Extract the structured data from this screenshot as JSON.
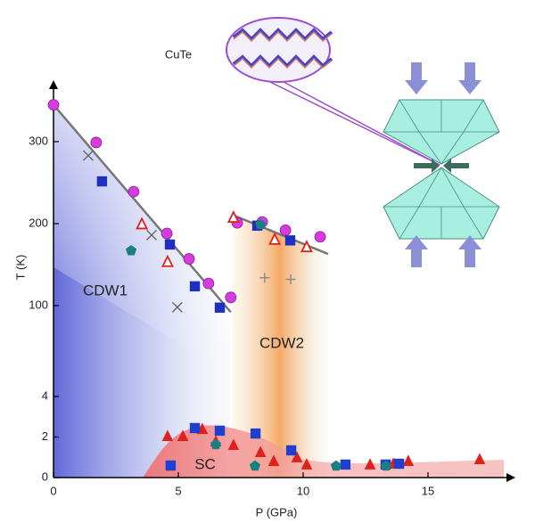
{
  "chart_data": [
    {
      "type": "scatter",
      "title": "CuTe",
      "ylabel": "T (K)",
      "xlim": [
        0,
        18.5
      ],
      "ylim": [
        90,
        375
      ],
      "yticks": [
        100,
        200,
        300
      ],
      "annotations": [
        "CDW1",
        "CDW2"
      ],
      "fits": [
        {
          "color": "#777777",
          "x": [
            0,
            7.1
          ],
          "values": [
            345,
            92
          ]
        },
        {
          "color": "#777777",
          "x": [
            7.14,
            11.0
          ],
          "values": [
            211,
            163
          ]
        }
      ],
      "series": [
        {
          "marker": "circle",
          "filled": true,
          "color": "#d63be0",
          "x": [
            0,
            1.71,
            3.21,
            4.54,
            5.43,
            6.21,
            7.1,
            7.36,
            8.36,
            9.29,
            10.68
          ],
          "values": [
            345,
            299,
            239,
            188,
            157,
            127,
            110,
            201,
            202,
            192,
            184
          ]
        },
        {
          "marker": "square",
          "filled": true,
          "color": "#1f2fbf",
          "x": [
            1.96,
            4.68,
            5.68,
            6.68,
            8.18,
            9.5
          ],
          "values": [
            251,
            174,
            123,
            97,
            197,
            179
          ]
        },
        {
          "marker": "triangle",
          "filled": false,
          "color": "#e0201c",
          "x": [
            3.54,
            4.57,
            7.21,
            8.86,
            10.14
          ],
          "values": [
            199,
            153,
            207,
            180,
            171
          ]
        },
        {
          "marker": "pentagon",
          "filled": true,
          "color": "#1a7f80",
          "x": [
            3.11,
            8.29
          ],
          "values": [
            167,
            199
          ]
        },
        {
          "marker": "cross",
          "filled": false,
          "color": "#666666",
          "x": [
            1.39,
            3.93,
            4.96
          ],
          "values": [
            283,
            186,
            98
          ]
        },
        {
          "marker": "plus",
          "filled": false,
          "color": "#888888",
          "x": [
            8.46,
            9.5
          ],
          "values": [
            134,
            132
          ]
        }
      ]
    },
    {
      "type": "scatter",
      "xlabel": "P (GPa)",
      "xlim": [
        0,
        18.5
      ],
      "ylim": [
        0,
        4.2
      ],
      "xticks": [
        0,
        5,
        10,
        15
      ],
      "yticks": [
        0,
        2,
        4
      ],
      "annotations": [
        "SC"
      ],
      "series": [
        {
          "marker": "triangle",
          "filled": true,
          "color": "#e0201c",
          "x": [
            4.57,
            5.18,
            5.96,
            6.5,
            7.21,
            8.29,
            8.82,
            9.75,
            10.14,
            12.68,
            13.61,
            14.21,
            17.07
          ],
          "values": [
            2.02,
            2.02,
            2.37,
            1.76,
            1.58,
            1.23,
            0.79,
            0.97,
            0.62,
            0.62,
            0.66,
            0.79,
            0.88
          ]
        },
        {
          "marker": "square",
          "filled": true,
          "color": "#1f3fd0",
          "x": [
            4.71,
            5.68,
            6.68,
            8.11,
            9.54,
            11.71,
            13.32,
            13.86
          ],
          "values": [
            0.57,
            2.42,
            2.29,
            2.15,
            1.32,
            0.62,
            0.62,
            0.66
          ]
        },
        {
          "marker": "pentagon",
          "filled": true,
          "color": "#1a7f80",
          "x": [
            6.5,
            8.07,
            11.32,
            13.32
          ],
          "values": [
            1.63,
            0.57,
            0.57,
            0.57
          ]
        }
      ]
    }
  ]
}
